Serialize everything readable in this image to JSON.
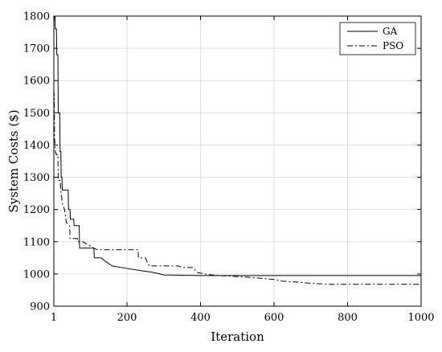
{
  "chart_data": {
    "type": "line",
    "title": "",
    "xlabel": "Iteration",
    "ylabel": "System Costs ($)",
    "xlim": [
      1,
      1000
    ],
    "ylim": [
      900,
      1800
    ],
    "xticks": [
      1,
      200,
      400,
      600,
      800,
      1000
    ],
    "yticks": [
      900,
      1000,
      1100,
      1200,
      1300,
      1400,
      1500,
      1600,
      1700,
      1800
    ],
    "grid": true,
    "legend": "top-right",
    "series": [
      {
        "name": "GA",
        "style": "solid",
        "color": "#000000",
        "points": [
          [
            1,
            1780
          ],
          [
            2,
            1800
          ],
          [
            4,
            1800
          ],
          [
            5,
            1760
          ],
          [
            8,
            1760
          ],
          [
            9,
            1680
          ],
          [
            12,
            1680
          ],
          [
            13,
            1500
          ],
          [
            17,
            1500
          ],
          [
            18,
            1380
          ],
          [
            20,
            1380
          ],
          [
            21,
            1300
          ],
          [
            23,
            1300
          ],
          [
            24,
            1260
          ],
          [
            40,
            1260
          ],
          [
            41,
            1200
          ],
          [
            45,
            1200
          ],
          [
            46,
            1170
          ],
          [
            55,
            1170
          ],
          [
            56,
            1150
          ],
          [
            70,
            1150
          ],
          [
            71,
            1080
          ],
          [
            110,
            1080
          ],
          [
            111,
            1050
          ],
          [
            130,
            1050
          ],
          [
            140,
            1040
          ],
          [
            160,
            1025
          ],
          [
            200,
            1017
          ],
          [
            240,
            1010
          ],
          [
            270,
            1005
          ],
          [
            290,
            1000
          ],
          [
            300,
            997
          ],
          [
            400,
            995
          ],
          [
            500,
            995
          ],
          [
            600,
            995
          ],
          [
            700,
            995
          ],
          [
            800,
            995
          ],
          [
            900,
            995
          ],
          [
            1000,
            995
          ]
        ]
      },
      {
        "name": "PSO",
        "style": "dashdot",
        "color": "#000000",
        "points": [
          [
            1,
            1550
          ],
          [
            2,
            1560
          ],
          [
            3,
            1420
          ],
          [
            5,
            1380
          ],
          [
            8,
            1370
          ],
          [
            12,
            1370
          ],
          [
            13,
            1290
          ],
          [
            18,
            1290
          ],
          [
            20,
            1260
          ],
          [
            24,
            1220
          ],
          [
            30,
            1200
          ],
          [
            35,
            1160
          ],
          [
            44,
            1150
          ],
          [
            45,
            1110
          ],
          [
            65,
            1110
          ],
          [
            66,
            1100
          ],
          [
            80,
            1100
          ],
          [
            95,
            1090
          ],
          [
            110,
            1080
          ],
          [
            120,
            1075
          ],
          [
            200,
            1075
          ],
          [
            230,
            1075
          ],
          [
            231,
            1050
          ],
          [
            250,
            1050
          ],
          [
            260,
            1025
          ],
          [
            340,
            1025
          ],
          [
            350,
            1020
          ],
          [
            380,
            1020
          ],
          [
            390,
            1005
          ],
          [
            420,
            998
          ],
          [
            450,
            995
          ],
          [
            500,
            992
          ],
          [
            560,
            987
          ],
          [
            600,
            983
          ],
          [
            620,
            978
          ],
          [
            660,
            975
          ],
          [
            700,
            971
          ],
          [
            750,
            968
          ],
          [
            800,
            968
          ],
          [
            900,
            968
          ],
          [
            1000,
            968
          ]
        ]
      }
    ]
  }
}
